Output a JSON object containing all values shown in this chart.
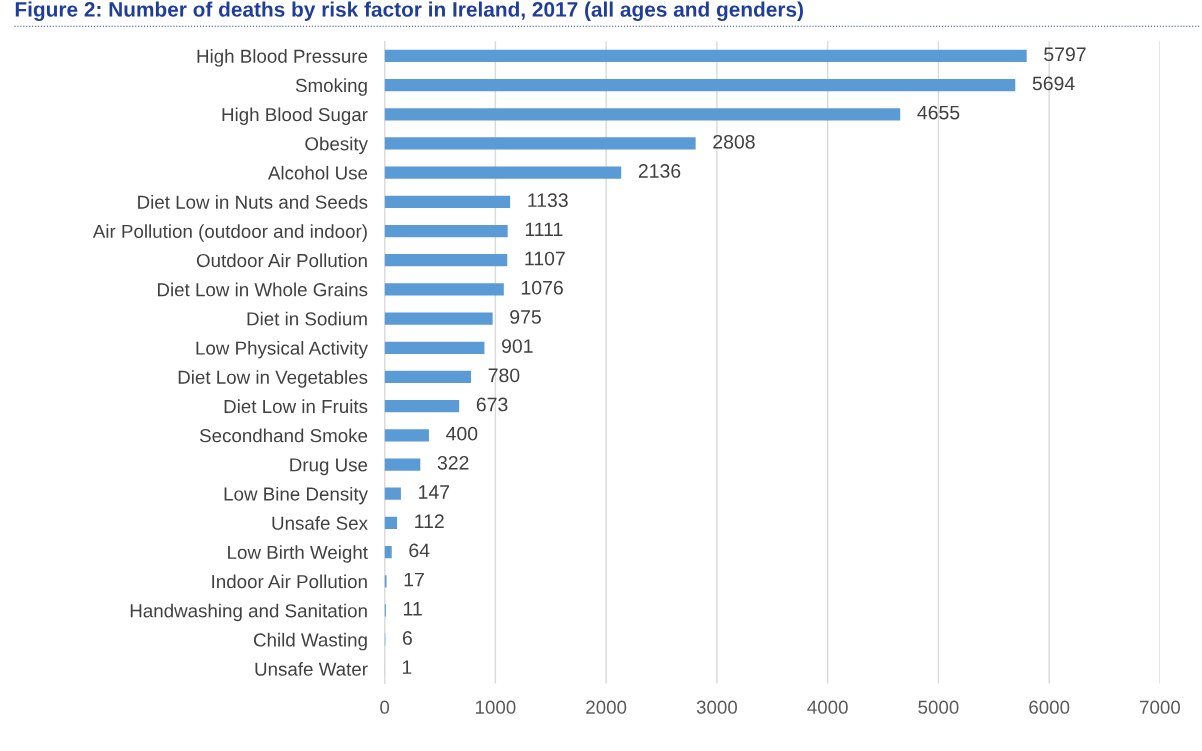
{
  "chart_data": {
    "type": "bar",
    "orientation": "horizontal",
    "title": "Figure 2: Number of deaths by risk factor in Ireland, 2017 (all ages and genders)",
    "categories": [
      "High Blood Pressure",
      "Smoking",
      "High Blood Sugar",
      "Obesity",
      "Alcohol Use",
      "Diet Low in Nuts and Seeds",
      "Air Pollution (outdoor and indoor)",
      "Outdoor Air Pollution",
      "Diet Low in Whole Grains",
      "Diet in Sodium",
      "Low Physical Activity",
      "Diet Low in Vegetables",
      "Diet Low in Fruits",
      "Secondhand Smoke",
      "Drug Use",
      "Low Bine Density",
      "Unsafe Sex",
      "Low Birth Weight",
      "Indoor Air Pollution",
      "Handwashing and Sanitation",
      "Child Wasting",
      "Unsafe Water"
    ],
    "values": [
      5797,
      5694,
      4655,
      2808,
      2136,
      1133,
      1111,
      1107,
      1076,
      975,
      901,
      780,
      673,
      400,
      322,
      147,
      112,
      64,
      17,
      11,
      6,
      1
    ],
    "color": "#5b9bd5",
    "data_labels": true,
    "xlim": [
      0,
      7000
    ],
    "xticks": [
      0,
      1000,
      2000,
      3000,
      4000,
      5000,
      6000,
      7000
    ],
    "grid": "x",
    "legend": false
  }
}
